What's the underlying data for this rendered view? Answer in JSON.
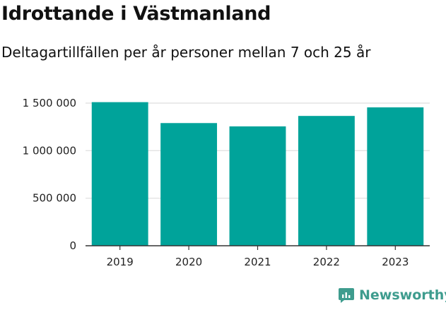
{
  "header": {
    "title": "Idrottande i Västmanland",
    "subtitle": "Deltagartillfällen per år personer mellan 7 och 25 år"
  },
  "brand": {
    "name": "Newsworthy",
    "color": "#3e9c8e"
  },
  "colors": {
    "bar": "#00a39a",
    "grid": "#dddddd",
    "axis": "#333333"
  },
  "chart_data": {
    "type": "bar",
    "title": "Idrottande i Västmanland",
    "subtitle": "Deltagartillfällen per år personer mellan 7 och 25 år",
    "categories": [
      "2019",
      "2020",
      "2021",
      "2022",
      "2023"
    ],
    "values": [
      1510000,
      1290000,
      1255000,
      1365000,
      1455000
    ],
    "ylim": [
      0,
      1500000
    ],
    "yticks": [
      0,
      500000,
      1000000,
      1500000
    ],
    "ytick_labels": [
      "0",
      "500 000",
      "1 000 000",
      "1 500 000"
    ],
    "xlabel": "",
    "ylabel": "",
    "grid": true,
    "legend": false
  }
}
